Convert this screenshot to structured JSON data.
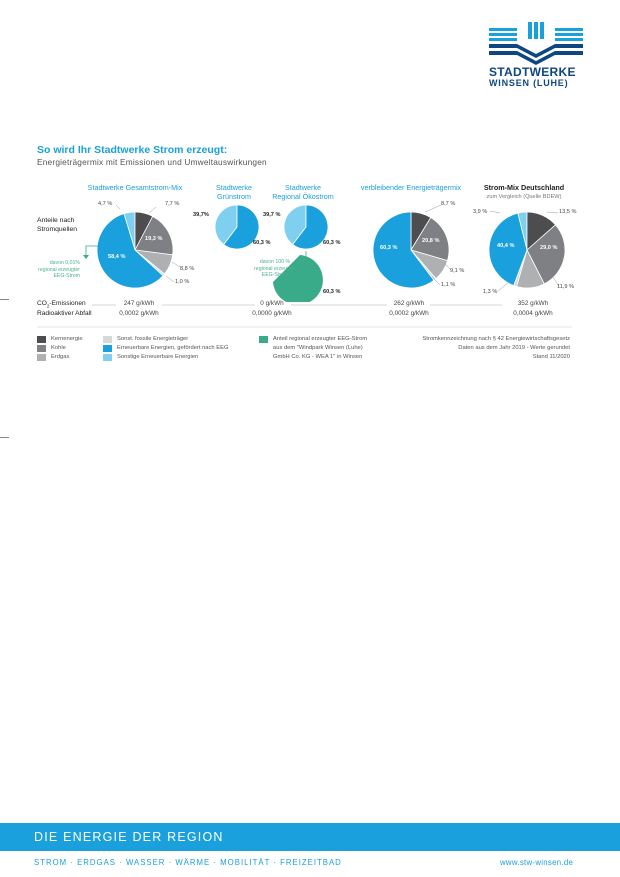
{
  "brand": {
    "name": "STADTWERKE",
    "sub": "WINSEN (LUHE)"
  },
  "header": {
    "title": "So wird Ihr Stadtwerke Strom erzeugt:",
    "subtitle": "Energieträgermix mit Emissionen und Umweltauswirkungen"
  },
  "row_labels": {
    "share": "Anteile nach Stromquellen",
    "co2": "CO₂-Emissionen",
    "waste": "Radioaktiver Abfall"
  },
  "colors": {
    "kernenergie": "#4d4d4f",
    "kohle": "#7f8083",
    "erdgas": "#aeb0b2",
    "fossil": "#d7d8d9",
    "eeg": "#1aa0dc",
    "sonstige": "#7fd0f0",
    "regional": "#3aab88",
    "accent": "#1aa0dc",
    "brand": "#0e4780"
  },
  "chart_data": [
    {
      "type": "pie",
      "title": "Stadtwerke Gesamtstrom-Mix",
      "slices": [
        {
          "label": "Kernenergie",
          "value": 7.7,
          "text": "7,7 %"
        },
        {
          "label": "Kohle",
          "value": 19.3,
          "text": "19,3 %"
        },
        {
          "label": "Erdgas",
          "value": 8.8,
          "text": "8,8 %"
        },
        {
          "label": "Sonst. fossile Energieträger",
          "value": 1.0,
          "text": "1,0 %"
        },
        {
          "label": "Erneuerbare Energien, gefördert nach EEG",
          "value": 58.4,
          "text": "58,4 %"
        },
        {
          "label": "Sonstige Erneuerbare Energien",
          "value": 4.7,
          "text": "4,7 %"
        }
      ],
      "note": "davon 0,01% regional erzeugter EEG-Strom",
      "co2": "247 g/kWh",
      "waste": "0,0002 g/kWh"
    },
    {
      "type": "pie",
      "title": "Stadtwerke Grünstrom",
      "slices": [
        {
          "label": "Erneuerbare Energien, gefördert nach EEG",
          "value": 60.3,
          "text": "60,3 %"
        },
        {
          "label": "Sonstige Erneuerbare Energien",
          "value": 39.7,
          "text": "39,7%"
        }
      ],
      "co2": "0 g/kWh",
      "waste": "0,0000 g/kWh"
    },
    {
      "type": "pie",
      "title": "Stadtwerke Regional Ökostrom",
      "slices": [
        {
          "label": "Erneuerbare Energien, gefördert nach EEG",
          "value": 60.3,
          "text": "60,3 %"
        },
        {
          "label": "Sonstige Erneuerbare Energien",
          "value": 39.7,
          "text": "39,7 %"
        }
      ],
      "note": "davon 100 % regional erzeugter EEG-Strom",
      "sub_slice": {
        "label": "Anteil regional erzeugter EEG-Strom",
        "value": 60.3,
        "text": "60,3 %"
      }
    },
    {
      "type": "pie",
      "title": "verbleibender Energieträgermix",
      "slices": [
        {
          "label": "Kernenergie",
          "value": 8.7,
          "text": "8,7 %"
        },
        {
          "label": "Kohle",
          "value": 20.8,
          "text": "20,8 %"
        },
        {
          "label": "Erdgas",
          "value": 9.1,
          "text": "9,1 %"
        },
        {
          "label": "Sonst. fossile Energieträger",
          "value": 1.1,
          "text": "1,1 %"
        },
        {
          "label": "Erneuerbare Energien, gefördert nach EEG",
          "value": 60.3,
          "text": "60,3 %"
        }
      ],
      "co2": "262 g/kWh",
      "waste": "0,0002 g/kWh"
    },
    {
      "type": "pie",
      "title": "Strom-Mix Deutschland",
      "subtitle": "zum Vergleich (Quelle BDEW)",
      "slices": [
        {
          "label": "Kernenergie",
          "value": 13.5,
          "text": "13,5 %"
        },
        {
          "label": "Kohle",
          "value": 29.0,
          "text": "29,0 %"
        },
        {
          "label": "Erdgas",
          "value": 11.9,
          "text": "11,9 %"
        },
        {
          "label": "Sonst. fossile Energieträger",
          "value": 1.3,
          "text": "1,3 %"
        },
        {
          "label": "Erneuerbare Energien, gefördert nach EEG",
          "value": 40.4,
          "text": "40,4 %"
        },
        {
          "label": "Sonstige Erneuerbare Energien",
          "value": 3.9,
          "text": "3,9 %"
        }
      ],
      "co2": "352 g/kWh",
      "waste": "0,0004 g/kWh"
    }
  ],
  "legend": {
    "col1": [
      "Kernenergie",
      "Kohle",
      "Erdgas"
    ],
    "col2": [
      "Sonst. fossile Energieträger",
      "Erneuerbare Energien, gefördert nach EEG",
      "Sonstige Erneuerbare Energien"
    ],
    "col3": [
      "Anteil regional erzeugter EEG-Strom",
      "aus dem \"Windpark Winsen (Luhe)",
      "GmbH  Co. KG - WEA 1\" in Winsen"
    ]
  },
  "source": [
    "Stromkennzeichnung nach § 42 Energiewirtschaftsgesetz",
    "Daten aus dem Jahr 2019 - Werte gerundet",
    "Stand 11/2020"
  ],
  "footer": {
    "title": "DIE ENERGIE DER REGION",
    "services": "STROM · ERDGAS · WASSER · WÄRME · MOBILITÄT · FREIZEITBAD",
    "url": "www.stw-winsen.de"
  }
}
